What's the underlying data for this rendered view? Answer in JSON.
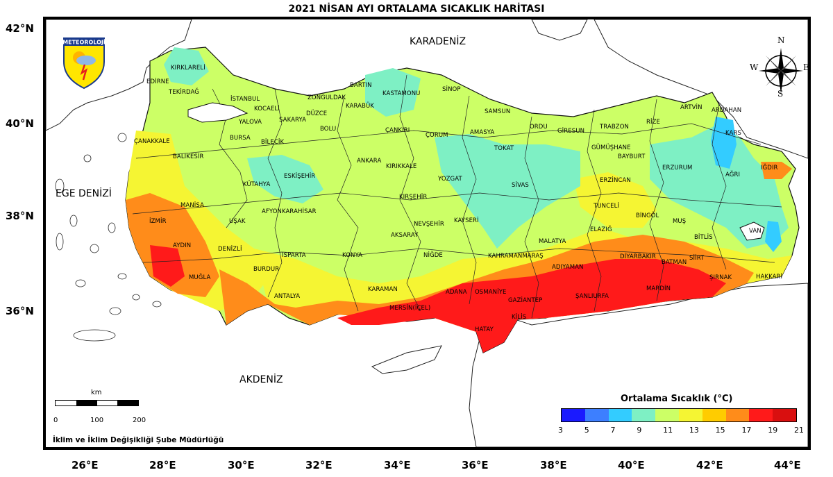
{
  "title": "2021 NİSAN AYI ORTALAMA SICAKLIK HARİTASI",
  "seas": {
    "karadeniz": "KARADENİZ",
    "ege": "EGE DENİZİ",
    "akdeniz": "AKDENİZ"
  },
  "latitudes": [
    "42°N",
    "40°N",
    "38°N",
    "36°N"
  ],
  "longitudes": [
    "26°E",
    "28°E",
    "30°E",
    "32°E",
    "34°E",
    "36°E",
    "38°E",
    "40°E",
    "42°E",
    "44°E"
  ],
  "legend": {
    "title": "Ortalama Sıcaklık (°C)",
    "ticks": [
      "3",
      "5",
      "7",
      "9",
      "11",
      "13",
      "15",
      "17",
      "19",
      "21"
    ],
    "colors": [
      "#1a1aff",
      "#3d7fff",
      "#33ccff",
      "#7ef0c4",
      "#ccff66",
      "#f5f533",
      "#ffcc00",
      "#ff8c1a",
      "#ff1a1a",
      "#d90f0f"
    ]
  },
  "scale": {
    "unit": "km",
    "labels": [
      "0",
      "100",
      "200"
    ]
  },
  "footer": "İklim ve İklim Değişikliği Şube Müdürlüğü",
  "logo_text": "METEOROLOJİ",
  "compass": {
    "n": "N",
    "s": "S",
    "e": "E",
    "w": "W"
  },
  "cities": [
    "KIRKLARELİ",
    "EDİRNE",
    "TEKİRDAĞ",
    "İSTANBUL",
    "KOCAELİ",
    "YALOVA",
    "SAKARYA",
    "DÜZCE",
    "ZONGULDAK",
    "BARTIN",
    "KARABÜK",
    "KASTAMONU",
    "SİNOP",
    "SAMSUN",
    "ORDU",
    "GİRESUN",
    "TRABZON",
    "RİZE",
    "ARTVİN",
    "ARDAHAN",
    "KARS",
    "IĞDIR",
    "AĞRI",
    "ERZURUM",
    "BAYBURT",
    "GÜMÜŞHANE",
    "ERZİNCAN",
    "TUNCELİ",
    "BİNGÖL",
    "MUŞ",
    "BİTLİS",
    "VAN",
    "HAKKARİ",
    "ŞIRNAK",
    "SİİRT",
    "BATMAN",
    "MARDİN",
    "DİYARBAKIR",
    "ŞANLIURFA",
    "ADIYAMAN",
    "MALATYA",
    "ELAZIĞ",
    "SİVAS",
    "TOKAT",
    "AMASYA",
    "ÇORUM",
    "ÇANKIRI",
    "BOLU",
    "BİLECİK",
    "BURSA",
    "ÇANAKKALE",
    "BALIKESİR",
    "MANİSA",
    "İZMİR",
    "AYDIN",
    "MUĞLA",
    "DENİZLİ",
    "UŞAK",
    "KÜTAHYA",
    "ESKİŞEHİR",
    "AFYONKARAHİSAR",
    "ISPARTA",
    "BURDUR",
    "ANTALYA",
    "KONYA",
    "KARAMAN",
    "MERSİN(İÇEL)",
    "ADANA",
    "OSMANİYE",
    "HATAY",
    "KİLİS",
    "GAZİANTEP",
    "KAHRAMANMARAŞ",
    "NİĞDE",
    "AKSARAY",
    "NEVŞEHİR",
    "KAYSERİ",
    "KIRŞEHİR",
    "KIRIKKALE",
    "ANKARA",
    "YOZGAT"
  ]
}
